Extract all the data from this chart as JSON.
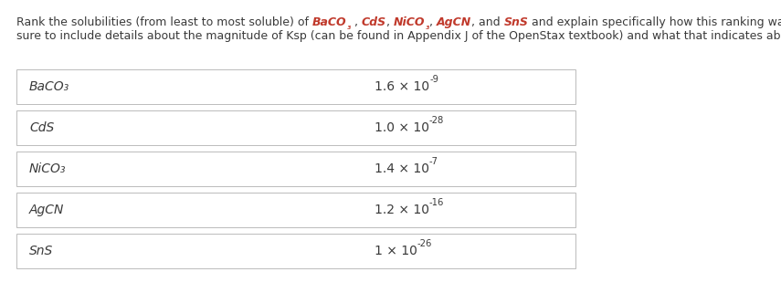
{
  "bg_color": "#ffffff",
  "text_color": "#3a3a3a",
  "bold_color": "#c0392b",
  "table_border_color": "#bbbbbb",
  "font_size_title": 9.0,
  "font_size_table": 10.0,
  "compounds": [
    "BaCO₃",
    "CdS",
    "NiCO₃",
    "AgCN",
    "SnS"
  ],
  "ksp_mantissa": [
    "1.6",
    "1.0",
    "1.4",
    "1.2",
    "1"
  ],
  "ksp_exponents": [
    "-9",
    "-28",
    "-7",
    "-16",
    "-26"
  ],
  "line1_segments": [
    [
      "Rank the solubilities (from least to most soluble) of ",
      false,
      false
    ],
    [
      "BaCO",
      true,
      false
    ],
    [
      "₃",
      true,
      true
    ],
    [
      " , ",
      false,
      false
    ],
    [
      "CdS",
      true,
      false
    ],
    [
      ", ",
      false,
      false
    ],
    [
      "NiCO",
      true,
      false
    ],
    [
      "₃",
      true,
      true
    ],
    [
      ", ",
      false,
      false
    ],
    [
      "AgCN",
      true,
      false
    ],
    [
      ", and ",
      false,
      false
    ],
    [
      "SnS",
      true,
      false
    ],
    [
      " and explain specifically how this ranking was determined. Make",
      false,
      false
    ]
  ],
  "line2": "sure to include details about the magnitude of Ksp (can be found in Appendix J of the OpenStax textbook) and what that indicates about solubility."
}
